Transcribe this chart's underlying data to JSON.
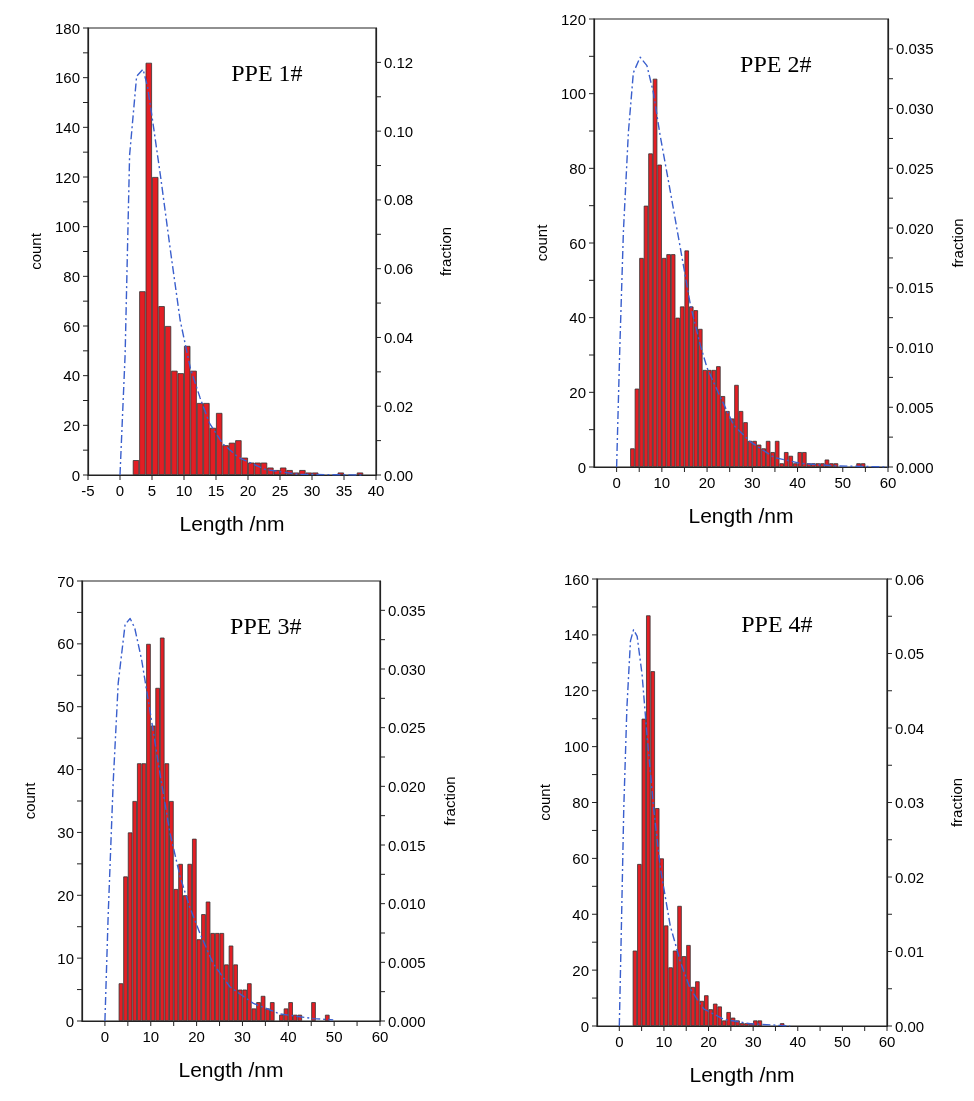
{
  "chart_data": [
    {
      "type": "histogram",
      "xlabel": "Length /nm",
      "ylabel": "count",
      "y2label": "fraction",
      "annotations": [
        "PPE 1#"
      ],
      "grid": false,
      "xlim": [
        -5,
        40
      ],
      "xticks": [
        -5,
        0,
        5,
        10,
        15,
        20,
        25,
        30,
        35,
        40
      ],
      "ylim": [
        0,
        180
      ],
      "yticks": [
        0,
        {
          "value": 10,
          "label": null
        },
        20,
        {
          "value": 30,
          "label": null
        },
        40,
        {
          "value": 50,
          "label": null
        },
        60,
        {
          "value": 70,
          "label": null
        },
        80,
        {
          "value": 90,
          "label": null
        },
        100,
        {
          "value": 110,
          "label": null
        },
        120,
        {
          "value": 130,
          "label": null
        },
        140,
        {
          "value": 150,
          "label": null
        },
        160,
        {
          "value": 170,
          "label": null
        },
        180
      ],
      "y2lim": [
        0,
        0.13
      ],
      "y2ticks": [
        {
          "value": 0,
          "label": "0.00"
        },
        {
          "value": 0.01,
          "label": null
        },
        {
          "value": 0.02,
          "label": "0.02"
        },
        {
          "value": 0.03,
          "label": null
        },
        {
          "value": 0.04,
          "label": "0.04"
        },
        {
          "value": 0.05,
          "label": null
        },
        {
          "value": 0.06,
          "label": "0.06"
        },
        {
          "value": 0.07,
          "label": null
        },
        {
          "value": 0.08,
          "label": "0.08"
        },
        {
          "value": 0.09,
          "label": null
        },
        {
          "value": 0.1,
          "label": "0.10"
        },
        {
          "value": 0.11,
          "label": null
        },
        {
          "value": 0.12,
          "label": "0.12"
        }
      ],
      "series": [
        {
          "type": "histogram",
          "color": "#e31e24",
          "bins": [
            2,
            3,
            4,
            5,
            6,
            7,
            8,
            9,
            10,
            11,
            12,
            13,
            14,
            15,
            16,
            17,
            18,
            19,
            20,
            21,
            22,
            23,
            24,
            25,
            26,
            27,
            28,
            29,
            30,
            31,
            32,
            33,
            34,
            35,
            36,
            37,
            38
          ],
          "values": [
            6,
            74,
            166,
            120,
            68,
            60,
            42,
            41,
            52,
            42,
            29,
            29,
            19,
            25,
            12,
            13,
            14,
            7,
            5,
            5,
            5,
            3,
            2,
            3,
            2,
            1,
            2,
            1,
            1,
            0,
            0,
            0,
            1,
            0,
            0,
            1
          ]
        },
        {
          "type": "line",
          "axis": "y2",
          "color": "#3a5fcd",
          "line_style": "dashed",
          "marker": "none",
          "x": [
            0,
            0.8,
            1.5,
            2.6,
            3.6,
            4.3,
            5.1,
            6.4,
            7.9,
            9.4,
            11,
            12.5,
            14,
            16.1,
            18.6,
            22.7,
            27.8,
            38
          ],
          "values": [
            0,
            0.035,
            0.093,
            0.116,
            0.118,
            0.113,
            0.103,
            0.086,
            0.065,
            0.045,
            0.031,
            0.0225,
            0.015,
            0.009,
            0.005,
            0.0016,
            0.0002,
            0
          ]
        }
      ]
    },
    {
      "type": "histogram",
      "xlabel": "Length /nm",
      "ylabel": "count",
      "y2label": "fraction",
      "annotations": [
        "PPE 2#"
      ],
      "grid": false,
      "xlim": [
        -5,
        60
      ],
      "xticks": [
        0,
        {
          "value": 5,
          "label": null
        },
        10,
        {
          "value": 15,
          "label": null
        },
        20,
        {
          "value": 25,
          "label": null
        },
        30,
        {
          "value": 35,
          "label": null
        },
        40,
        {
          "value": 45,
          "label": null
        },
        50,
        {
          "value": 55,
          "label": null
        },
        60
      ],
      "ylim": [
        0,
        120
      ],
      "yticks": [
        0,
        {
          "value": 10,
          "label": null
        },
        20,
        {
          "value": 30,
          "label": null
        },
        40,
        {
          "value": 50,
          "label": null
        },
        60,
        {
          "value": 70,
          "label": null
        },
        80,
        {
          "value": 90,
          "label": null
        },
        100,
        {
          "value": 110,
          "label": null
        },
        120
      ],
      "y2lim": [
        0,
        0.0375
      ],
      "y2ticks": [
        {
          "value": 0,
          "label": "0.000"
        },
        {
          "value": 0.0025,
          "label": null
        },
        {
          "value": 0.005,
          "label": "0.005"
        },
        {
          "value": 0.0075,
          "label": null
        },
        {
          "value": 0.01,
          "label": "0.010"
        },
        {
          "value": 0.0125,
          "label": null
        },
        {
          "value": 0.015,
          "label": "0.015"
        },
        {
          "value": 0.0175,
          "label": null
        },
        {
          "value": 0.02,
          "label": "0.020"
        },
        {
          "value": 0.0225,
          "label": null
        },
        {
          "value": 0.025,
          "label": "0.025"
        },
        {
          "value": 0.0275,
          "label": null
        },
        {
          "value": 0.03,
          "label": "0.030"
        },
        {
          "value": 0.0325,
          "label": null
        },
        {
          "value": 0.035,
          "label": "0.035"
        }
      ],
      "series": [
        {
          "type": "histogram",
          "color": "#e31e24",
          "bins": [
            3,
            4,
            5,
            6,
            7,
            8,
            9,
            10,
            11,
            12,
            13,
            14,
            15,
            16,
            17,
            18,
            19,
            20,
            21,
            22,
            23,
            24,
            25,
            26,
            27,
            28,
            29,
            30,
            31,
            32,
            33,
            34,
            35,
            36,
            37,
            38,
            39,
            40,
            41,
            42,
            43,
            44,
            45,
            46,
            47,
            48,
            49,
            50,
            51,
            52,
            53,
            54,
            55
          ],
          "values": [
            5,
            21,
            56,
            70,
            84,
            104,
            81,
            56,
            57,
            57,
            40,
            43,
            58,
            43,
            42,
            37,
            26,
            26,
            26,
            27,
            19,
            15,
            13,
            22,
            15,
            12,
            7,
            7,
            6,
            5,
            7,
            4,
            7,
            1,
            4,
            3,
            1,
            4,
            4,
            1,
            1,
            1,
            1,
            2,
            1,
            1,
            0,
            0,
            0,
            0,
            1,
            1
          ]
        },
        {
          "type": "line",
          "axis": "y2",
          "color": "#3a5fcd",
          "line_style": "dashed",
          "marker": "none",
          "x": [
            0,
            0.7,
            1.5,
            2.6,
            3.7,
            5.2,
            6.7,
            8.1,
            9.6,
            11.9,
            14.1,
            16.3,
            18.5,
            20,
            23,
            25.9,
            29.6,
            34.8,
            40.7,
            48,
            60
          ],
          "values": [
            0,
            0.0099,
            0.0197,
            0.028,
            0.033,
            0.0343,
            0.0336,
            0.0314,
            0.0278,
            0.023,
            0.0183,
            0.0136,
            0.0102,
            0.0083,
            0.0058,
            0.0035,
            0.0021,
            0.0008,
            0.0003,
            0.0001,
            0
          ]
        }
      ]
    },
    {
      "type": "histogram",
      "xlabel": "Length /nm",
      "ylabel": "count",
      "y2label": "fraction",
      "annotations": [
        "PPE 3#"
      ],
      "grid": false,
      "xlim": [
        -5,
        60
      ],
      "xticks": [
        0,
        {
          "value": 5,
          "label": null
        },
        10,
        {
          "value": 15,
          "label": null
        },
        20,
        {
          "value": 25,
          "label": null
        },
        30,
        {
          "value": 35,
          "label": null
        },
        40,
        {
          "value": 45,
          "label": null
        },
        50,
        {
          "value": 55,
          "label": null
        },
        60
      ],
      "ylim": [
        0,
        70
      ],
      "yticks": [
        0,
        {
          "value": 5,
          "label": null
        },
        10,
        {
          "value": 15,
          "label": null
        },
        20,
        {
          "value": 25,
          "label": null
        },
        30,
        {
          "value": 35,
          "label": null
        },
        40,
        {
          "value": 45,
          "label": null
        },
        50,
        {
          "value": 55,
          "label": null
        },
        60,
        {
          "value": 65,
          "label": null
        },
        70
      ],
      "y2lim": [
        0,
        0.0375
      ],
      "y2ticks": [
        {
          "value": 0,
          "label": "0.000"
        },
        {
          "value": 0.0025,
          "label": null
        },
        {
          "value": 0.005,
          "label": "0.005"
        },
        {
          "value": 0.0075,
          "label": null
        },
        {
          "value": 0.01,
          "label": "0.010"
        },
        {
          "value": 0.0125,
          "label": null
        },
        {
          "value": 0.015,
          "label": "0.015"
        },
        {
          "value": 0.0175,
          "label": null
        },
        {
          "value": 0.02,
          "label": "0.020"
        },
        {
          "value": 0.0225,
          "label": null
        },
        {
          "value": 0.025,
          "label": "0.025"
        },
        {
          "value": 0.0275,
          "label": null
        },
        {
          "value": 0.03,
          "label": "0.030"
        },
        {
          "value": 0.0325,
          "label": null
        },
        {
          "value": 0.035,
          "label": "0.035"
        }
      ],
      "series": [
        {
          "type": "histogram",
          "color": "#e31e24",
          "bins": [
            3,
            4,
            5,
            6,
            7,
            8,
            9,
            10,
            11,
            12,
            13,
            14,
            15,
            16,
            17,
            18,
            19,
            20,
            21,
            22,
            23,
            24,
            25,
            26,
            27,
            28,
            29,
            30,
            31,
            32,
            33,
            34,
            35,
            36,
            37,
            38,
            39,
            40,
            41,
            42,
            43,
            44,
            45,
            46,
            47,
            48,
            49
          ],
          "values": [
            6,
            23,
            30,
            35,
            41,
            41,
            60,
            47,
            53,
            61,
            41,
            35,
            21,
            25,
            20,
            25,
            29,
            13,
            17,
            19,
            14,
            14,
            14,
            9,
            12,
            9,
            5,
            5,
            6,
            2,
            3,
            4,
            2,
            3,
            0,
            1,
            2,
            3,
            1,
            1,
            0,
            0,
            3,
            0,
            0,
            1
          ]
        },
        {
          "type": "line",
          "axis": "y2",
          "color": "#3a5fcd",
          "line_style": "dashed",
          "marker": "none",
          "x": [
            0,
            0.7,
            1.8,
            2.9,
            4.4,
            5.5,
            6.5,
            8,
            9.8,
            12,
            14.2,
            16.4,
            18.5,
            20.7,
            23.6,
            27.3,
            32.4,
            38.2,
            45.5,
            49.8
          ],
          "values": [
            0,
            0.0089,
            0.0203,
            0.0288,
            0.0338,
            0.0343,
            0.0335,
            0.0308,
            0.0265,
            0.0211,
            0.016,
            0.0123,
            0.0097,
            0.0075,
            0.0049,
            0.0029,
            0.0015,
            0.0006,
            0.0002,
            0.0001
          ]
        }
      ]
    },
    {
      "type": "histogram",
      "xlabel": "Length /nm",
      "ylabel": "count",
      "y2label": "fraction",
      "annotations": [
        "PPE 4#"
      ],
      "grid": false,
      "xlim": [
        -5,
        60
      ],
      "xticks": [
        0,
        {
          "value": 5,
          "label": null
        },
        10,
        {
          "value": 15,
          "label": null
        },
        20,
        {
          "value": 25,
          "label": null
        },
        30,
        {
          "value": 35,
          "label": null
        },
        40,
        {
          "value": 45,
          "label": null
        },
        50,
        {
          "value": 55,
          "label": null
        },
        60
      ],
      "ylim": [
        0,
        160
      ],
      "yticks": [
        0,
        {
          "value": 10,
          "label": null
        },
        20,
        {
          "value": 30,
          "label": null
        },
        40,
        {
          "value": 50,
          "label": null
        },
        60,
        {
          "value": 70,
          "label": null
        },
        80,
        {
          "value": 90,
          "label": null
        },
        100,
        {
          "value": 110,
          "label": null
        },
        120,
        {
          "value": 130,
          "label": null
        },
        140,
        {
          "value": 150,
          "label": null
        },
        160
      ],
      "y2lim": [
        0,
        0.06
      ],
      "y2ticks": [
        {
          "value": 0,
          "label": "0.00"
        },
        {
          "value": 0.005,
          "label": null
        },
        {
          "value": 0.01,
          "label": "0.01"
        },
        {
          "value": 0.015,
          "label": null
        },
        {
          "value": 0.02,
          "label": "0.02"
        },
        {
          "value": 0.025,
          "label": null
        },
        {
          "value": 0.03,
          "label": "0.03"
        },
        {
          "value": 0.035,
          "label": null
        },
        {
          "value": 0.04,
          "label": "0.04"
        },
        {
          "value": 0.045,
          "label": null
        },
        {
          "value": 0.05,
          "label": "0.05"
        },
        {
          "value": 0.055,
          "label": null
        },
        {
          "value": 0.06,
          "label": "0.06"
        }
      ],
      "series": [
        {
          "type": "histogram",
          "color": "#e31e24",
          "bins": [
            3,
            4,
            5,
            6,
            7,
            8,
            9,
            10,
            11,
            12,
            13,
            14,
            15,
            16,
            17,
            18,
            19,
            20,
            21,
            22,
            23,
            24,
            25,
            26,
            27,
            28,
            29,
            30,
            31,
            32,
            33,
            34,
            35,
            36,
            37
          ],
          "values": [
            27,
            58,
            110,
            147,
            127,
            78,
            60,
            36,
            21,
            27,
            43,
            25,
            29,
            14,
            16,
            9,
            11,
            6,
            8,
            7,
            2,
            5,
            3,
            2,
            1,
            1,
            1,
            2,
            2,
            0,
            0,
            0,
            0,
            1
          ]
        },
        {
          "type": "line",
          "axis": "y2",
          "color": "#3a5fcd",
          "line_style": "dashed",
          "marker": "none",
          "x": [
            0,
            0.4,
            1,
            1.7,
            2.5,
            3.2,
            4,
            5.1,
            6.2,
            7.7,
            9.2,
            11.4,
            13.7,
            15.9,
            18.9,
            23.4,
            29.4,
            38.3
          ],
          "values": [
            0,
            0.0113,
            0.0292,
            0.0427,
            0.0517,
            0.0532,
            0.0523,
            0.0472,
            0.0391,
            0.0292,
            0.0212,
            0.0135,
            0.0086,
            0.005,
            0.0023,
            0.0009,
            0.0003,
            0
          ]
        }
      ]
    }
  ]
}
